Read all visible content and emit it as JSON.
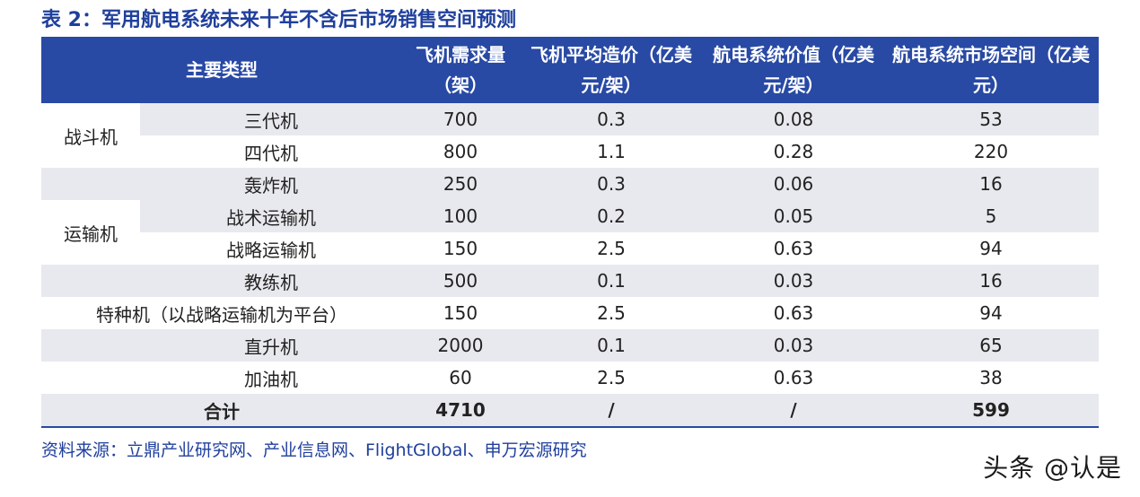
{
  "title": "表 2：军用航电系统未来十年不含后市场销售空间预测",
  "headers": {
    "type": "主要类型",
    "demand": "飞机需求量（架）",
    "avg_price": "飞机平均造价（亿美元/架）",
    "avionics_value": "航电系统价值（亿美元/架）",
    "market_space": "航电系统市场空间（亿美元）"
  },
  "groups": {
    "fighter": "战斗机",
    "transport": "运输机"
  },
  "rows": [
    {
      "type": "三代机",
      "demand": "700",
      "avg_price": "0.3",
      "avionics_value": "0.08",
      "market_space": "53"
    },
    {
      "type": "四代机",
      "demand": "800",
      "avg_price": "1.1",
      "avionics_value": "0.28",
      "market_space": "220"
    },
    {
      "type": "轰炸机",
      "demand": "250",
      "avg_price": "0.3",
      "avionics_value": "0.06",
      "market_space": "16"
    },
    {
      "type": "战术运输机",
      "demand": "100",
      "avg_price": "0.2",
      "avionics_value": "0.05",
      "market_space": "5"
    },
    {
      "type": "战略运输机",
      "demand": "150",
      "avg_price": "2.5",
      "avionics_value": "0.63",
      "market_space": "94"
    },
    {
      "type": "教练机",
      "demand": "500",
      "avg_price": "0.1",
      "avionics_value": "0.03",
      "market_space": "16"
    },
    {
      "type": "特种机（以战略运输机为平台）",
      "demand": "150",
      "avg_price": "2.5",
      "avionics_value": "0.63",
      "market_space": "94"
    },
    {
      "type": "直升机",
      "demand": "2000",
      "avg_price": "0.1",
      "avionics_value": "0.03",
      "market_space": "65"
    },
    {
      "type": "加油机",
      "demand": "60",
      "avg_price": "2.5",
      "avionics_value": "0.63",
      "market_space": "38"
    }
  ],
  "total": {
    "type": "合计",
    "demand": "4710",
    "avg_price": "/",
    "avionics_value": "/",
    "market_space": "599"
  },
  "source": "资料来源：立鼎产业研究网、产业信息网、FlightGlobal、申万宏源研究",
  "watermark": "头条 @认是",
  "colors": {
    "header_bg": "#2849a4",
    "title": "#1f3f9c",
    "row_shade": "#e8e9ee"
  }
}
